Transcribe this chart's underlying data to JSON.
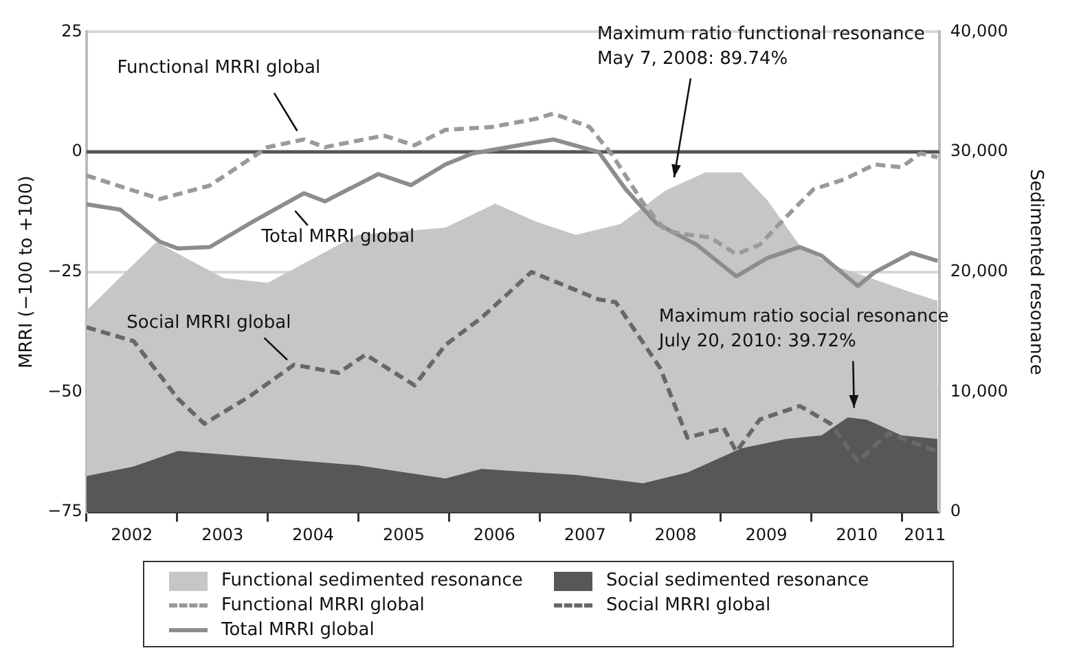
{
  "chart_data": {
    "type": "line",
    "xlabel": null,
    "ylabel": "MRRI (−100 to +100)",
    "y2label": "Sedimented resonance",
    "xlim": [
      2002,
      2011.41
    ],
    "xticks": [
      {
        "value": 2002,
        "label": null
      },
      {
        "value": 2002.5,
        "label": "2002"
      },
      {
        "value": 2003,
        "label": null
      },
      {
        "value": 2003.5,
        "label": "2003"
      },
      {
        "value": 2004,
        "label": null
      },
      {
        "value": 2004.5,
        "label": "2004"
      },
      {
        "value": 2005,
        "label": null
      },
      {
        "value": 2005.5,
        "label": "2005"
      },
      {
        "value": 2006,
        "label": null
      },
      {
        "value": 2006.5,
        "label": "2006"
      },
      {
        "value": 2007,
        "label": null
      },
      {
        "value": 2007.5,
        "label": "2007"
      },
      {
        "value": 2008,
        "label": null
      },
      {
        "value": 2008.5,
        "label": "2008"
      },
      {
        "value": 2009,
        "label": null
      },
      {
        "value": 2009.5,
        "label": "2009"
      },
      {
        "value": 2010,
        "label": null
      },
      {
        "value": 2010.5,
        "label": "2010"
      },
      {
        "value": 2011,
        "label": null
      },
      {
        "value": 2011.25,
        "label": "2011"
      }
    ],
    "ylim": [
      -75,
      25
    ],
    "yticks": [
      -75,
      -50,
      -25,
      0,
      25
    ],
    "y2lim": [
      0,
      40000
    ],
    "y2ticks": [
      {
        "value": 0,
        "label": "0"
      },
      {
        "value": 10000,
        "label": "10,000"
      },
      {
        "value": 20000,
        "label": "20,000"
      },
      {
        "value": 30000,
        "label": "30,000"
      },
      {
        "value": 40000,
        "label": "40,000"
      }
    ],
    "grid": "y",
    "legend": "bottom",
    "ref_lines": [
      {
        "axis": "y",
        "value": 0,
        "label": null,
        "color": "#555555"
      }
    ],
    "series": [
      {
        "name": "Functional sedimented resonance",
        "type": "area",
        "axis": "y2",
        "color": "#c6c6c6",
        "x": [
          2002.0,
          2002.77,
          2003.51,
          2004.0,
          2004.99,
          2005.96,
          2006.51,
          2006.96,
          2007.4,
          2007.89,
          2008.39,
          2008.83,
          2009.22,
          2009.51,
          2009.87,
          2010.21,
          2010.61,
          2011.1,
          2011.39
        ],
        "values": [
          16800,
          22500,
          19500,
          19100,
          23100,
          23700,
          25700,
          24200,
          23100,
          24000,
          26800,
          28300,
          28300,
          26000,
          22200,
          20600,
          19600,
          18300,
          17600
        ]
      },
      {
        "name": "Social sedimented resonance",
        "type": "area",
        "axis": "y2",
        "color": "#575757",
        "x": [
          2002.0,
          2002.52,
          2003.01,
          2004.0,
          2004.99,
          2005.96,
          2006.36,
          2006.96,
          2007.4,
          2008.14,
          2008.63,
          2009.22,
          2009.72,
          2010.11,
          2010.4,
          2010.61,
          2010.99,
          2011.39
        ],
        "values": [
          3000,
          3800,
          5100,
          4500,
          3900,
          2800,
          3600,
          3300,
          3100,
          2400,
          3300,
          5300,
          6100,
          6400,
          7900,
          7700,
          6400,
          6100
        ]
      },
      {
        "name": "Functional MRRI global",
        "line_style": "dashed",
        "color": "#9a9a9a",
        "x": [
          2002.0,
          2002.81,
          2003.36,
          2004.0,
          2004.4,
          2004.63,
          2005.28,
          2005.62,
          2005.96,
          2006.47,
          2006.96,
          2007.15,
          2007.55,
          2007.8,
          2008.14,
          2008.39,
          2008.63,
          2008.88,
          2009.17,
          2009.43,
          2009.72,
          2010.02,
          2010.36,
          2010.7,
          2010.99,
          2011.2,
          2011.39
        ],
        "values": [
          -4.9,
          -9.8,
          -7,
          1,
          2.6,
          1,
          3.4,
          1.4,
          4.6,
          5.2,
          6.9,
          8,
          5.2,
          -0.6,
          -10.6,
          -16.4,
          -17.2,
          -17.8,
          -21.3,
          -19.3,
          -13.5,
          -7.8,
          -5.7,
          -2.6,
          -3.2,
          -0.3,
          -1.1
        ]
      },
      {
        "name": "Social MRRI global",
        "line_style": "dashed",
        "color": "#686868",
        "x": [
          2002.0,
          2002.52,
          2003.01,
          2003.3,
          2003.8,
          2004.29,
          2004.78,
          2005.08,
          2005.62,
          2005.96,
          2006.36,
          2006.91,
          2007.65,
          2007.84,
          2008.33,
          2008.63,
          2009.03,
          2009.17,
          2009.43,
          2009.87,
          2010.21,
          2010.51,
          2010.85,
          2011.39
        ],
        "values": [
          -36.5,
          -39.4,
          -51.4,
          -56.6,
          -50.9,
          -44.3,
          -46,
          -42.2,
          -48.6,
          -40.2,
          -34.5,
          -25,
          -30.7,
          -31.3,
          -45,
          -59.5,
          -57.5,
          -62.4,
          -55.7,
          -52.9,
          -56.6,
          -64.4,
          -58.6,
          -62.4
        ]
      },
      {
        "name": "Total MRRI global",
        "line_style": "solid",
        "color": "#8d8d8d",
        "x": [
          2002.0,
          2002.37,
          2002.81,
          2003.01,
          2003.36,
          2003.8,
          2004.4,
          2004.63,
          2005.22,
          2005.58,
          2005.96,
          2006.26,
          2006.96,
          2007.15,
          2007.65,
          2007.95,
          2008.29,
          2008.73,
          2009.17,
          2009.51,
          2009.87,
          2010.11,
          2010.51,
          2010.7,
          2011.1,
          2011.39
        ],
        "values": [
          -10.9,
          -12,
          -18.7,
          -20.1,
          -19.8,
          -14.9,
          -8.6,
          -10.3,
          -4.6,
          -6.9,
          -2.6,
          -0.3,
          2,
          2.6,
          0,
          -7.8,
          -14.9,
          -19.3,
          -25.9,
          -22.1,
          -19.8,
          -21.6,
          -27.9,
          -25,
          -21,
          -22.7
        ]
      }
    ],
    "annotations": [
      {
        "text": "Functional MRRI global",
        "x": 2004.4,
        "y": 2.6
      },
      {
        "text": "Total MRRI global",
        "x": 2004.26,
        "y": -11.5
      },
      {
        "text": "Social MRRI global",
        "x": 2004.29,
        "y": -44.3
      },
      "Maximum ratio functional resonance\nMay 7, 2008: 89.74%",
      "Maximum ratio social resonance\nJuly 20, 2010: 39.72%"
    ]
  }
}
